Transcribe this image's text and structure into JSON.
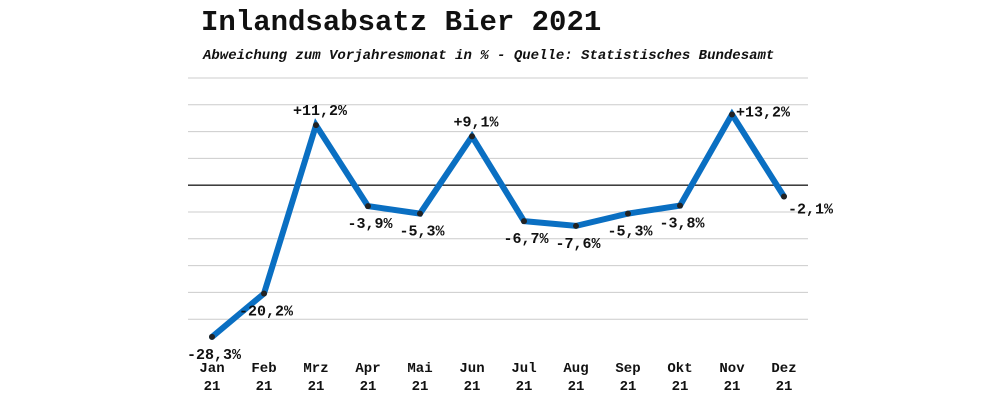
{
  "chart_data": {
    "type": "line",
    "title": "Inlandsabsatz Bier 2021",
    "subtitle": "Abweichung zum Vorjahresmonat in % - Quelle: Statistisches Bundesamt",
    "categories": [
      {
        "month": "Jan",
        "year": "21"
      },
      {
        "month": "Feb",
        "year": "21"
      },
      {
        "month": "Mrz",
        "year": "21"
      },
      {
        "month": "Apr",
        "year": "21"
      },
      {
        "month": "Mai",
        "year": "21"
      },
      {
        "month": "Jun",
        "year": "21"
      },
      {
        "month": "Jul",
        "year": "21"
      },
      {
        "month": "Aug",
        "year": "21"
      },
      {
        "month": "Sep",
        "year": "21"
      },
      {
        "month": "Okt",
        "year": "21"
      },
      {
        "month": "Nov",
        "year": "21"
      },
      {
        "month": "Dez",
        "year": "21"
      }
    ],
    "values": [
      -28.3,
      -20.2,
      11.2,
      -3.9,
      -5.3,
      9.1,
      -6.7,
      -7.6,
      -5.3,
      -3.8,
      13.2,
      -2.1
    ],
    "labels": [
      "-28,3%",
      "-20,2%",
      "+11,2%",
      "-3,9%",
      "-5,3%",
      "+9,1%",
      "-6,7%",
      "-7,6%",
      "-5,3%",
      "-3,8%",
      "+13,2%",
      "-2,1%"
    ],
    "label_side": [
      "below",
      "below",
      "above",
      "below",
      "below",
      "above",
      "below",
      "below",
      "below",
      "below",
      "right",
      "right"
    ],
    "ylim": [
      -30,
      20
    ],
    "grid_step": 5,
    "grid": true,
    "line_color": "#0a6fc2",
    "marker_color": "#222222",
    "grid_color": "#cccccc",
    "zero_line_color": "#222222"
  }
}
